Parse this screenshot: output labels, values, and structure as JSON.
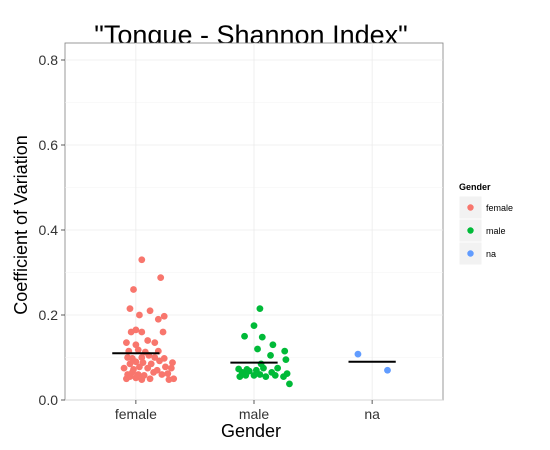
{
  "chart_data": {
    "type": "scatter",
    "title": "\"Tongue - Shannon Index\"",
    "xlabel": "Gender",
    "ylabel": "Coefficient of Variation",
    "categories": [
      "female",
      "male",
      "na"
    ],
    "ylim": [
      0,
      0.84
    ],
    "yticks": [
      "0.0",
      "0.2",
      "0.4",
      "0.6",
      "0.8"
    ],
    "ytick_values": [
      0,
      0.2,
      0.4,
      0.6,
      0.8
    ],
    "grid": true,
    "legend": {
      "title": "Gender",
      "position": "right"
    },
    "series": [
      {
        "name": "female",
        "color": "#F8766D",
        "mean": 0.11,
        "points": [
          [
            0.92,
            0.05
          ],
          [
            0.95,
            0.055
          ],
          [
            1.0,
            0.052
          ],
          [
            1.05,
            0.048
          ],
          [
            1.12,
            0.05
          ],
          [
            1.28,
            0.048
          ],
          [
            1.32,
            0.05
          ],
          [
            0.93,
            0.06
          ],
          [
            0.97,
            0.065
          ],
          [
            1.02,
            0.06
          ],
          [
            1.07,
            0.058
          ],
          [
            1.15,
            0.065
          ],
          [
            1.22,
            0.06
          ],
          [
            1.27,
            0.062
          ],
          [
            0.9,
            0.075
          ],
          [
            0.98,
            0.072
          ],
          [
            1.03,
            0.078
          ],
          [
            1.1,
            0.075
          ],
          [
            1.18,
            0.07
          ],
          [
            1.25,
            0.078
          ],
          [
            1.3,
            0.075
          ],
          [
            0.95,
            0.085
          ],
          [
            1.0,
            0.09
          ],
          [
            1.06,
            0.088
          ],
          [
            1.13,
            0.085
          ],
          [
            1.2,
            0.092
          ],
          [
            1.31,
            0.088
          ],
          [
            0.93,
            0.1
          ],
          [
            0.97,
            0.098
          ],
          [
            1.05,
            0.1
          ],
          [
            1.11,
            0.105
          ],
          [
            1.16,
            0.1
          ],
          [
            1.24,
            0.098
          ],
          [
            0.94,
            0.115
          ],
          [
            1.02,
            0.118
          ],
          [
            1.08,
            0.113
          ],
          [
            1.19,
            0.115
          ],
          [
            0.92,
            0.135
          ],
          [
            1.0,
            0.13
          ],
          [
            1.1,
            0.14
          ],
          [
            1.16,
            0.135
          ],
          [
            0.96,
            0.16
          ],
          [
            1.0,
            0.165
          ],
          [
            1.05,
            0.16
          ],
          [
            1.23,
            0.16
          ],
          [
            1.03,
            0.2
          ],
          [
            1.19,
            0.19
          ],
          [
            1.24,
            0.197
          ],
          [
            0.95,
            0.215
          ],
          [
            1.12,
            0.21
          ],
          [
            0.98,
            0.26
          ],
          [
            1.21,
            0.288
          ],
          [
            1.05,
            0.33
          ]
        ]
      },
      {
        "name": "male",
        "color": "#00BA38",
        "mean": 0.088,
        "points": [
          [
            1.88,
            0.055
          ],
          [
            1.93,
            0.058
          ],
          [
            2.0,
            0.058
          ],
          [
            2.05,
            0.06
          ],
          [
            2.1,
            0.055
          ],
          [
            2.18,
            0.058
          ],
          [
            2.25,
            0.055
          ],
          [
            1.9,
            0.065
          ],
          [
            1.96,
            0.068
          ],
          [
            2.02,
            0.07
          ],
          [
            2.15,
            0.065
          ],
          [
            2.28,
            0.062
          ],
          [
            1.94,
            0.072
          ],
          [
            2.08,
            0.075
          ],
          [
            2.2,
            0.075
          ],
          [
            1.87,
            0.073
          ],
          [
            2.3,
            0.038
          ],
          [
            2.06,
            0.085
          ],
          [
            2.27,
            0.095
          ],
          [
            2.14,
            0.105
          ],
          [
            2.03,
            0.12
          ],
          [
            2.26,
            0.115
          ],
          [
            2.16,
            0.13
          ],
          [
            2.07,
            0.148
          ],
          [
            1.92,
            0.15
          ],
          [
            2.0,
            0.175
          ],
          [
            2.05,
            0.215
          ]
        ]
      },
      {
        "name": "na",
        "color": "#619CFF",
        "mean": 0.09,
        "points": [
          [
            2.88,
            0.108
          ],
          [
            3.13,
            0.07
          ]
        ]
      }
    ]
  }
}
